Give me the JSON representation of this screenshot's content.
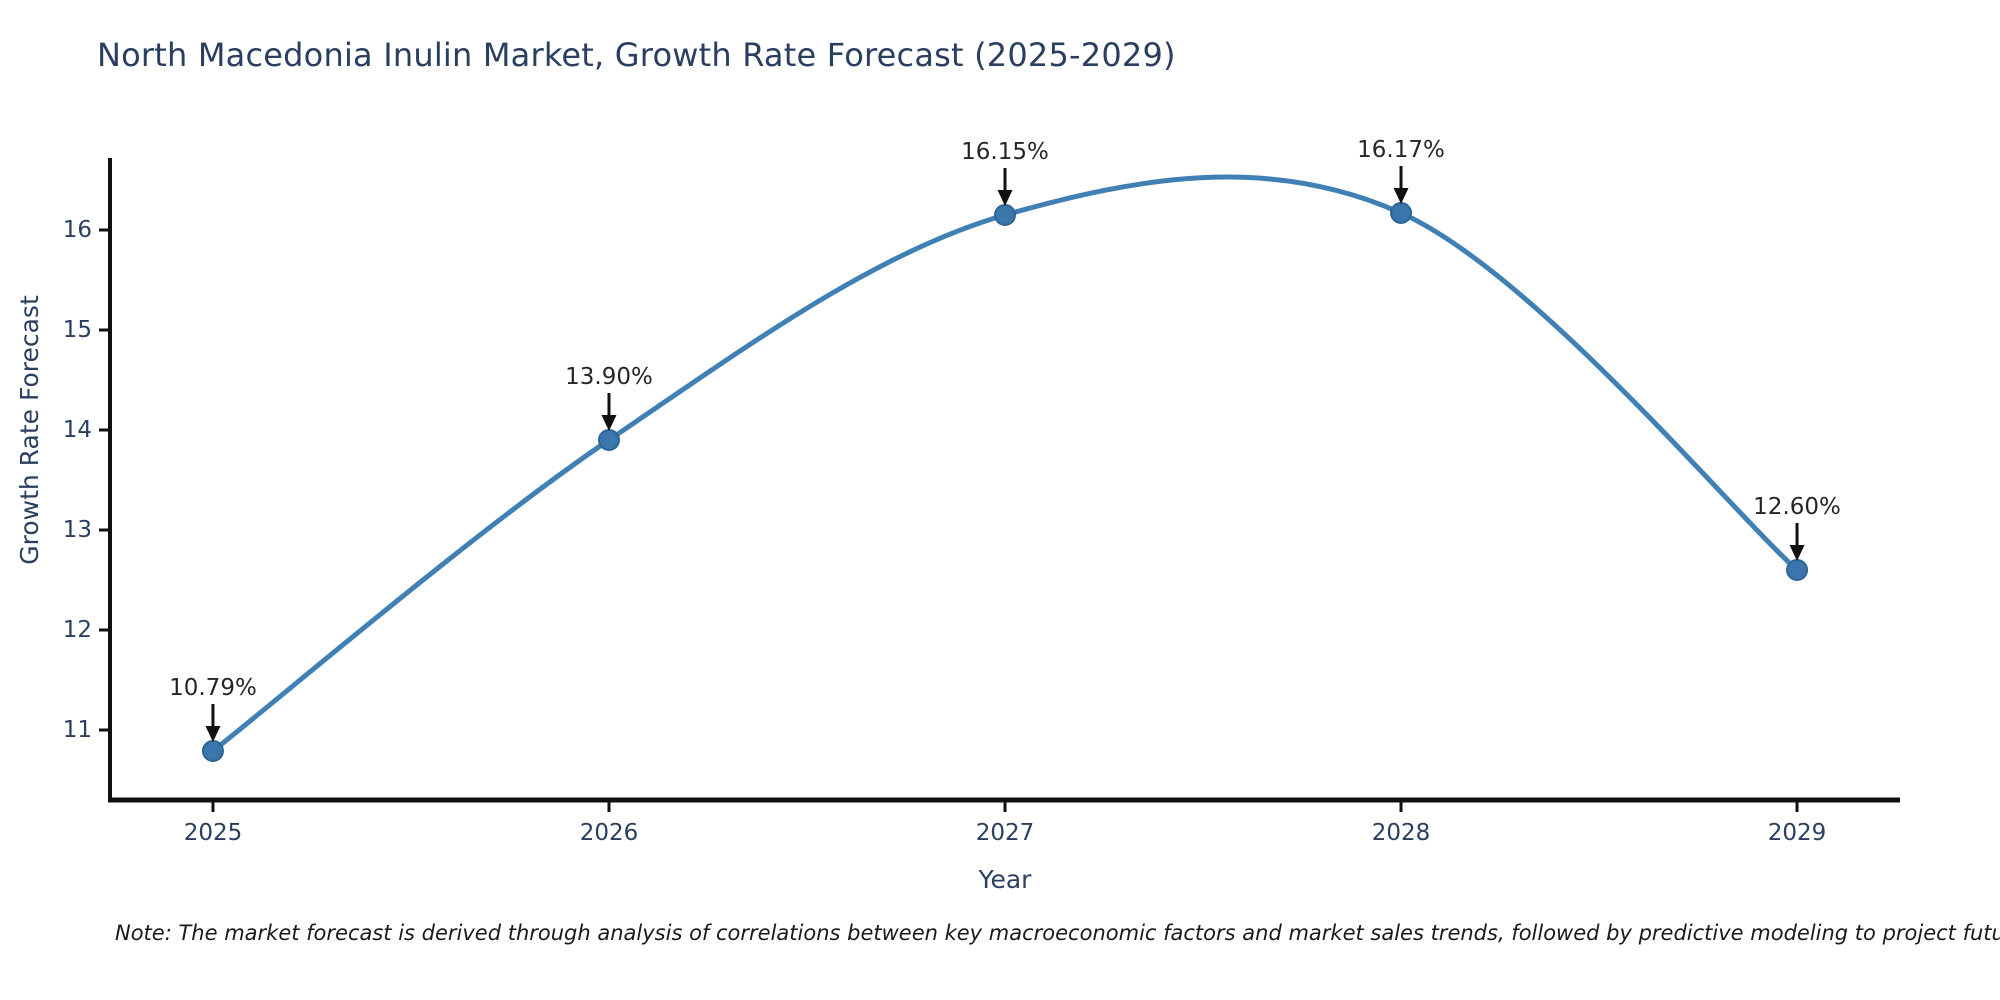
{
  "chart_data": {
    "type": "line",
    "title": "North Macedonia Inulin Market, Growth Rate Forecast (2025-2029)",
    "xlabel": "Year",
    "ylabel": "Growth Rate Forecast",
    "x": [
      2025,
      2026,
      2027,
      2028,
      2029
    ],
    "values": [
      10.79,
      13.9,
      16.15,
      16.17,
      12.6
    ],
    "point_labels": [
      "10.79%",
      "13.90%",
      "16.15%",
      "16.17%",
      "12.60%"
    ],
    "x_tick_labels": [
      "2025",
      "2026",
      "2027",
      "2028",
      "2029"
    ],
    "y_ticks": [
      11,
      12,
      13,
      14,
      15,
      16
    ],
    "xlim": [
      2024.74,
      2029.26
    ],
    "ylim": [
      10.3,
      16.7
    ],
    "line_shape": "spline",
    "grid": false,
    "legend_position": "none",
    "colors": {
      "line": "#4180b4",
      "marker_fill": "#3a76ab",
      "marker_edge": "#2e6597",
      "axis": "#111111",
      "tick_text": "#2a3f5f",
      "axis_label_text": "#2a3f5f",
      "annotation_text": "#262626",
      "arrow": "#111111"
    }
  },
  "note": "Note: The market forecast is derived through analysis of correlations between key macroeconomic factors and market sales trends, followed by predictive modeling to project future sales"
}
